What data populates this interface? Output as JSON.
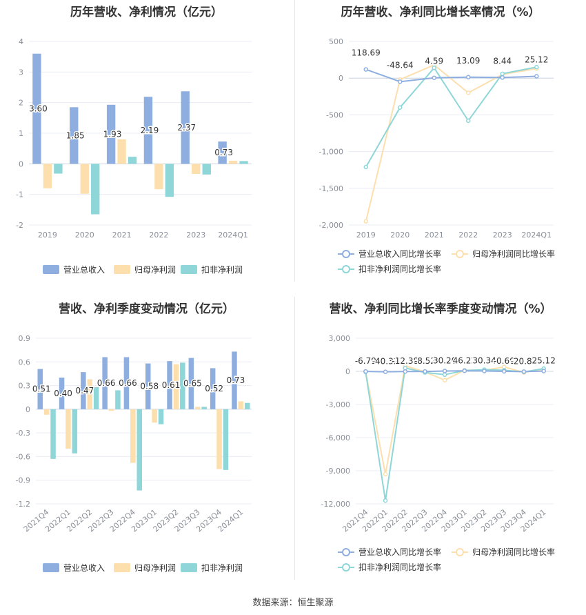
{
  "colors": {
    "revenue": "#8eaedf",
    "netprofit": "#fddfae",
    "deducted": "#8ed6d8",
    "grid": "#e8ecf3",
    "axis": "#cfd6e2",
    "tick": "#8a8f98",
    "label": "#333333"
  },
  "legend_labels": {
    "revenue": "营业总收入",
    "netprofit": "归母净利润",
    "deducted": "扣非净利润",
    "revenue_growth": "营业总收入同比增长率",
    "netprofit_growth": "归母净利润同比增长率",
    "deducted_growth": "扣非净利润同比增长率"
  },
  "source": "数据来源：恒生聚源",
  "chart_data": [
    {
      "id": "annual_amount",
      "type": "bar",
      "title": "历年营收、净利情况（亿元）",
      "categories": [
        "2019",
        "2020",
        "2021",
        "2022",
        "2023",
        "2024Q1"
      ],
      "ylim": [
        -2,
        4
      ],
      "yticks": [
        -2,
        -1,
        0,
        1,
        2,
        3,
        4
      ],
      "series": [
        {
          "name": "营业总收入",
          "key": "revenue",
          "values": [
            3.6,
            1.85,
            1.93,
            2.19,
            2.37,
            0.73
          ]
        },
        {
          "name": "归母净利润",
          "key": "netprofit",
          "values": [
            -0.8,
            -0.98,
            0.8,
            -0.83,
            -0.33,
            0.1
          ]
        },
        {
          "name": "扣非净利润",
          "key": "deducted",
          "values": [
            -0.32,
            -1.65,
            0.23,
            -1.08,
            -0.35,
            0.09
          ]
        }
      ],
      "data_labels": [
        "3.60",
        "1.85",
        "1.93",
        "2.19",
        "2.37",
        "0.73"
      ],
      "legend_position": "bottom"
    },
    {
      "id": "annual_growth",
      "type": "line",
      "title": "历年营收、净利同比增长率情况（%）",
      "categories": [
        "2019",
        "2020",
        "2021",
        "2022",
        "2023",
        "2024Q1"
      ],
      "ylim": [
        -2000,
        500
      ],
      "yticks": [
        -2000,
        -1500,
        -1000,
        -500,
        0,
        500
      ],
      "ytick_labels": [
        "-2,000",
        "-1,500",
        "-1,000",
        "-500",
        "0",
        "500"
      ],
      "series": [
        {
          "name": "营业总收入同比增长率",
          "key": "revenue",
          "values": [
            118.69,
            -48.64,
            4.59,
            13.09,
            8.44,
            25.12
          ]
        },
        {
          "name": "归母净利润同比增长率",
          "key": "netprofit",
          "values": [
            -1950,
            -20,
            180,
            -200,
            50,
            130
          ]
        },
        {
          "name": "扣非净利润同比增长率",
          "key": "deducted",
          "values": [
            -1210,
            -400,
            140,
            -580,
            60,
            150
          ]
        }
      ],
      "data_labels": [
        "118.69",
        "-48.64",
        "4.59",
        "13.09",
        "8.44",
        "25.12"
      ],
      "legend_position": "bottom"
    },
    {
      "id": "quarterly_amount",
      "type": "bar",
      "title": "营收、净利季度变动情况（亿元）",
      "categories": [
        "2021Q4",
        "2022Q1",
        "2022Q2",
        "2022Q3",
        "2022Q4",
        "2023Q1",
        "2023Q2",
        "2023Q3",
        "2023Q4",
        "2024Q1"
      ],
      "ylim": [
        -1.2,
        0.9
      ],
      "yticks": [
        -1.2,
        -0.9,
        -0.6,
        -0.3,
        0,
        0.3,
        0.6,
        0.9
      ],
      "series": [
        {
          "name": "营业总收入",
          "key": "revenue",
          "values": [
            0.51,
            0.4,
            0.47,
            0.66,
            0.66,
            0.58,
            0.61,
            0.65,
            0.52,
            0.73
          ]
        },
        {
          "name": "归母净利润",
          "key": "netprofit",
          "values": [
            -0.07,
            -0.5,
            0.38,
            -0.02,
            -0.68,
            -0.17,
            0.57,
            0.03,
            -0.76,
            0.1
          ]
        },
        {
          "name": "扣非净利润",
          "key": "deducted",
          "values": [
            -0.63,
            -0.56,
            0.28,
            0.24,
            -1.03,
            -0.19,
            0.59,
            0.03,
            -0.77,
            0.08
          ]
        }
      ],
      "data_labels": [
        "0.51",
        "0.40",
        "0.47",
        "0.66",
        "0.66",
        "0.58",
        "0.61",
        "0.65",
        "0.52",
        "0.73"
      ],
      "legend_position": "bottom"
    },
    {
      "id": "quarterly_growth",
      "type": "line",
      "title": "营收、净利同比增长率季度变动情况（%）",
      "categories": [
        "2021Q4",
        "2022Q1",
        "2022Q2",
        "2022Q3",
        "2022Q4",
        "2023Q1",
        "2023Q2",
        "2023Q3",
        "2023Q4",
        "2024Q1"
      ],
      "ylim": [
        -12000,
        3000
      ],
      "yticks": [
        -12000,
        -9000,
        -6000,
        -3000,
        0,
        3000
      ],
      "ytick_labels": [
        "-12,000",
        "-9,000",
        "-6,000",
        "-3,000",
        "0",
        "3,000"
      ],
      "series": [
        {
          "name": "营业总收入同比增长率",
          "key": "revenue",
          "values": [
            -6.79,
            -40.32,
            -12.38,
            -8.52,
            30.2,
            46.22,
            30.34,
            -0.6,
            -20.83,
            25.12
          ]
        },
        {
          "name": "归母净利润同比增长率",
          "key": "netprofit",
          "values": [
            -30,
            -9300,
            500,
            -50,
            -800,
            100,
            100,
            400,
            -100,
            200
          ]
        },
        {
          "name": "扣非净利润同比增长率",
          "key": "deducted",
          "values": [
            -50,
            -11700,
            300,
            -100,
            -300,
            80,
            150,
            100,
            -50,
            250
          ]
        }
      ],
      "data_labels": [
        "-6.79",
        "-40.32",
        "-12.38",
        "-8.52",
        "30.20",
        "46.22",
        "30.34",
        "-0.60",
        "-20.83",
        "25.12"
      ],
      "legend_position": "bottom"
    }
  ]
}
